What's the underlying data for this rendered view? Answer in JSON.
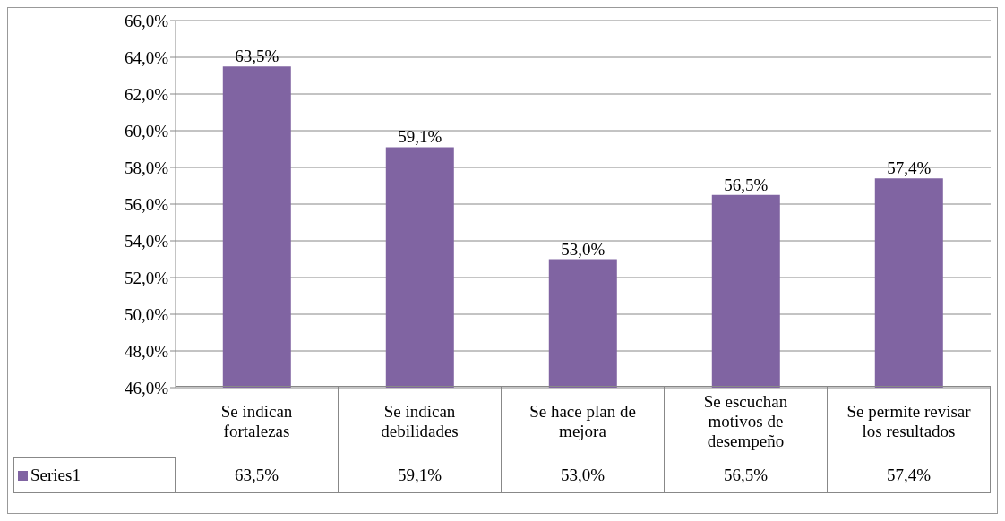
{
  "chart_data": {
    "type": "bar",
    "categories": [
      "Se indican fortalezas",
      "Se indican debilidades",
      "Se hace plan de mejora",
      "Se escuchan motivos de desempeño",
      "Se permite revisar los resultados"
    ],
    "series": [
      {
        "name": "Series1",
        "color": "#8064a2",
        "values": [
          63.5,
          59.1,
          53.0,
          56.5,
          57.4
        ],
        "value_labels": [
          "63,5%",
          "59,1%",
          "53,0%",
          "56,5%",
          "57,4%"
        ]
      }
    ],
    "ylim": [
      46,
      66
    ],
    "yticks": [
      {
        "value": 46,
        "label": "46,0%"
      },
      {
        "value": 48,
        "label": "48,0%"
      },
      {
        "value": 50,
        "label": "50,0%"
      },
      {
        "value": 52,
        "label": "52,0%"
      },
      {
        "value": 54,
        "label": "54,0%"
      },
      {
        "value": 56,
        "label": "56,0%"
      },
      {
        "value": 58,
        "label": "58,0%"
      },
      {
        "value": 60,
        "label": "60,0%"
      },
      {
        "value": 62,
        "label": "62,0%"
      },
      {
        "value": 64,
        "label": "64,0%"
      },
      {
        "value": 66,
        "label": "66,0%"
      }
    ],
    "grid": "y",
    "legend": "bottom"
  }
}
